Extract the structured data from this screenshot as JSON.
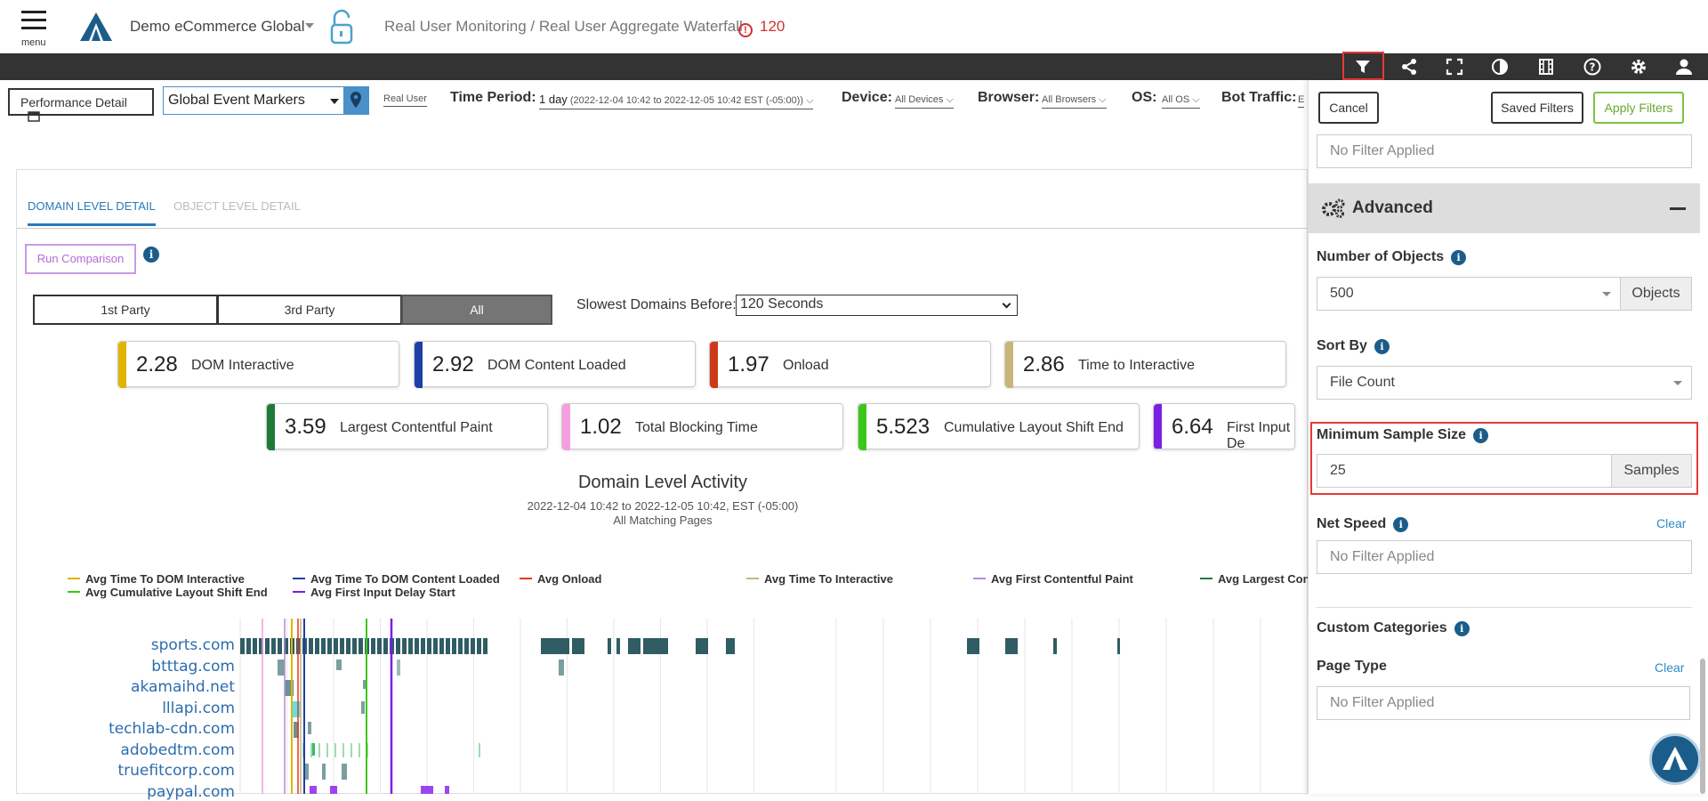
{
  "header": {
    "menu_label": "menu",
    "account": "Demo eCommerce Global",
    "breadcrumb": "Real User Monitoring / Real User Aggregate Waterfall",
    "alert_count": "120"
  },
  "toolbar": {
    "icons": [
      "filter-icon",
      "share-icon",
      "fullscreen-icon",
      "contrast-icon",
      "film-icon",
      "help-icon",
      "gear-icon",
      "user-icon"
    ]
  },
  "filters": {
    "performance_detail": "Performance Detail",
    "event_markers": "Global Event Markers",
    "real_user": "Real User",
    "time_period_label": "Time Period:",
    "time_period_value": "1 day",
    "time_period_range": "(2022-12-04 10:42 to 2022-12-05 10:42 EST (-05:00))",
    "device_label": "Device:",
    "device_value": "All Devices",
    "browser_label": "Browser:",
    "browser_value": "All Browsers",
    "os_label": "OS:",
    "os_value": "All OS",
    "bot_label": "Bot Traffic:",
    "bot_value": "E"
  },
  "main": {
    "tabs": [
      "DOMAIN LEVEL DETAIL",
      "OBJECT LEVEL DETAIL"
    ],
    "run_comparison": "Run Comparison",
    "party_buttons": [
      "1st Party",
      "3rd Party",
      "All"
    ],
    "slowest_label": "Slowest Domains Before:",
    "slowest_value": "120 Seconds",
    "metrics_row1": [
      {
        "value": "2.28",
        "label": "DOM Interactive",
        "color": "#e0b400"
      },
      {
        "value": "2.92",
        "label": "DOM Content Loaded",
        "color": "#1e3fa8"
      },
      {
        "value": "1.97",
        "label": "Onload",
        "color": "#cc3a1a"
      },
      {
        "value": "2.86",
        "label": "Time to Interactive",
        "color": "#c9b57a"
      }
    ],
    "metrics_row2": [
      {
        "value": "3.59",
        "label": "Largest Contentful Paint",
        "color": "#1f7a3a"
      },
      {
        "value": "1.02",
        "label": "Total Blocking Time",
        "color": "#f49ee0"
      },
      {
        "value": "5.523",
        "label": "Cumulative Layout Shift End",
        "color": "#3cc81a"
      },
      {
        "value": "6.64",
        "label": "First Input De",
        "color": "#7b1fe0"
      }
    ],
    "chart_title": "Domain Level Activity",
    "chart_range": "2022-12-04 10:42 to 2022-12-05 10:42, EST (-05:00)",
    "chart_pages": "All Matching Pages",
    "legend": [
      {
        "label": "Avg Time To DOM Interactive",
        "color": "#e0b400"
      },
      {
        "label": "Avg Time To DOM Content Loaded",
        "color": "#1e3fa8"
      },
      {
        "label": "Avg Onload",
        "color": "#e53a1a"
      },
      {
        "label": "Avg Time To Interactive",
        "color": "#c9b57a"
      },
      {
        "label": "Avg First Contentful Paint",
        "color": "#b68ad8"
      },
      {
        "label": "Avg Largest Con",
        "color": "#1f7a3a"
      },
      {
        "label": "Avg Cumulative Layout Shift End",
        "color": "#3cc81a"
      },
      {
        "label": "Avg First Input Delay Start",
        "color": "#7b1fe0"
      }
    ],
    "domains": [
      "sports.com",
      "btttag.com",
      "akamaihd.net",
      "lllapi.com",
      "techlab-cdn.com",
      "adobedtm.com",
      "truefitcorp.com",
      "paypal.com"
    ]
  },
  "panel": {
    "cancel": "Cancel",
    "saved_filters": "Saved Filters",
    "apply_filters": "Apply Filters",
    "top_placeholder": "No Filter Applied",
    "advanced": "Advanced",
    "num_objects_label": "Number of Objects",
    "num_objects_value": "500",
    "num_objects_addon": "Objects",
    "sort_by_label": "Sort By",
    "sort_by_value": "File Count",
    "min_sample_label": "Minimum Sample Size",
    "min_sample_value": "25",
    "min_sample_addon": "Samples",
    "net_speed_label": "Net Speed",
    "net_speed_clear": "Clear",
    "net_speed_placeholder": "No Filter Applied",
    "custom_categories": "Custom Categories",
    "page_type_label": "Page Type",
    "page_type_clear": "Clear",
    "page_type_placeholder": "No Filter Applied"
  }
}
